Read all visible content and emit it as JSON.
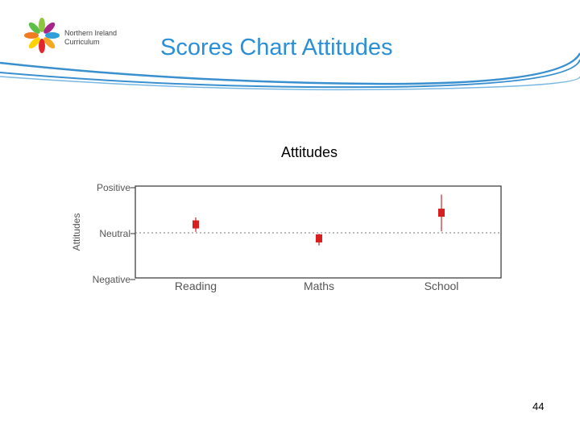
{
  "logo": {
    "line1": "Northern Ireland",
    "line2": "Curriculum"
  },
  "slide": {
    "title": "Scores Chart Attitudes",
    "page_number": "44"
  },
  "colors": {
    "title_blue": "#2b8fd6",
    "swoosh": "#3a8fcf",
    "marker": "#d81e1e",
    "whisker": "#c02828",
    "axis_text": "#555555"
  },
  "chart_data": {
    "type": "scatter",
    "title": "Attitudes",
    "xlabel": "",
    "ylabel": "Attitudes",
    "categories": [
      "Reading",
      "Maths",
      "School"
    ],
    "y_ticks": [
      {
        "label": "Positive",
        "value": 1
      },
      {
        "label": "Neutral",
        "value": 0
      },
      {
        "label": "Negative",
        "value": -1
      }
    ],
    "ylim": [
      -1,
      1
    ],
    "reference_line": {
      "value": 0,
      "style": "dotted"
    },
    "series": [
      {
        "values": [
          0.18,
          -0.12,
          0.43
        ],
        "low": [
          0.02,
          -0.27,
          0.03
        ],
        "high": [
          0.33,
          -0.02,
          0.82
        ]
      }
    ],
    "grid": false,
    "legend": "none"
  }
}
